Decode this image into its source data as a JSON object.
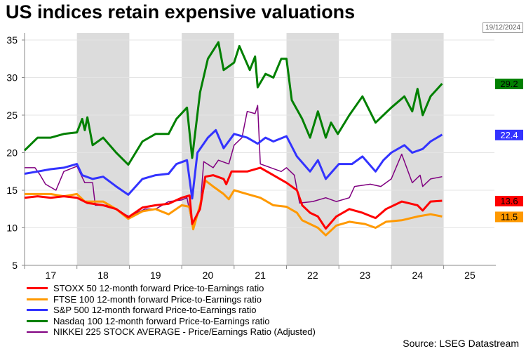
{
  "title": "US indices retain expensive valuations",
  "date_stamp": "19/12/2024",
  "source": "Source: LSEG Datastream",
  "chart_data": {
    "type": "line",
    "title": "US indices retain expensive valuations",
    "xlim": [
      2017,
      2026
    ],
    "ylim": [
      5,
      36
    ],
    "yticks": [
      5,
      10,
      15,
      20,
      25,
      30,
      35
    ],
    "xtick_labels": [
      "17",
      "18",
      "19",
      "20",
      "21",
      "22",
      "23",
      "24",
      "25"
    ],
    "shaded_years": [
      2018,
      2020,
      2022,
      2024
    ],
    "grid": true,
    "legend_placement": "bottom",
    "series": [
      {
        "name": "STOXX 50  12-month forward Price-to-Earnings ratio",
        "color": "#ff0000",
        "last_label": "13.6",
        "label_text_color": "#000000",
        "x": [
          2017,
          2017.25,
          2017.5,
          2017.75,
          2018,
          2018.2,
          2018.5,
          2018.75,
          2018.98,
          2019.25,
          2019.5,
          2019.75,
          2020,
          2020.15,
          2020.2,
          2020.35,
          2020.45,
          2020.6,
          2020.8,
          2020.85,
          2020.95,
          2021.25,
          2021.5,
          2021.75,
          2022,
          2022.2,
          2022.3,
          2022.45,
          2022.6,
          2022.75,
          2022.95,
          2023.2,
          2023.45,
          2023.7,
          2023.9,
          2024.2,
          2024.5,
          2024.6,
          2024.75,
          2024.97
        ],
        "y": [
          14,
          14.2,
          14,
          14.2,
          14,
          13.3,
          13,
          12.5,
          11.4,
          12.7,
          13,
          13.2,
          14,
          14.3,
          10.5,
          12.5,
          16.8,
          17,
          16.5,
          15.8,
          17.5,
          17.5,
          18,
          17,
          16,
          15,
          13,
          12,
          11.5,
          9.9,
          11.5,
          12.5,
          12,
          11.3,
          12.5,
          13.5,
          13,
          12.3,
          13.5,
          13.6
        ]
      },
      {
        "name": "FTSE 100 12-month forward Price-to-Earnings ratio",
        "color": "#ff9900",
        "last_label": "11.5",
        "label_text_color": "#000000",
        "x": [
          2017,
          2017.25,
          2017.5,
          2017.75,
          2018,
          2018.15,
          2018.5,
          2018.75,
          2018.98,
          2019.25,
          2019.5,
          2019.75,
          2020,
          2020.15,
          2020.22,
          2020.35,
          2020.45,
          2020.6,
          2020.8,
          2020.9,
          2021,
          2021.25,
          2021.5,
          2021.75,
          2022,
          2022.2,
          2022.3,
          2022.45,
          2022.6,
          2022.75,
          2022.95,
          2023.2,
          2023.5,
          2023.7,
          2023.9,
          2024.2,
          2024.5,
          2024.75,
          2024.97
        ],
        "y": [
          14.5,
          14.5,
          14.5,
          14.2,
          14.5,
          13.5,
          13.5,
          12.5,
          11.2,
          12.2,
          12.5,
          11.8,
          13,
          12.8,
          9.8,
          13,
          16.3,
          15.5,
          14.5,
          13.8,
          15,
          14.5,
          14,
          13,
          12.8,
          12,
          11,
          10.5,
          10,
          9,
          10.3,
          10.8,
          10.5,
          10,
          10.8,
          11,
          11.5,
          11.8,
          11.5
        ]
      },
      {
        "name": "S&P 500 12-month forward Price-to-Earnings ratio",
        "color": "#3333ff",
        "last_label": "22.4",
        "label_text_color": "#ffffff",
        "x": [
          2017,
          2017.25,
          2017.5,
          2017.75,
          2018,
          2018.1,
          2018.3,
          2018.5,
          2018.75,
          2018.98,
          2019.25,
          2019.5,
          2019.75,
          2019.9,
          2020.1,
          2020.2,
          2020.3,
          2020.5,
          2020.65,
          2020.8,
          2021,
          2021.25,
          2021.45,
          2021.6,
          2021.75,
          2022,
          2022.2,
          2022.45,
          2022.6,
          2022.75,
          2023,
          2023.25,
          2023.45,
          2023.7,
          2023.85,
          2024,
          2024.25,
          2024.4,
          2024.6,
          2024.75,
          2024.97
        ],
        "y": [
          17.2,
          17.5,
          17.8,
          18,
          18.5,
          17,
          16.5,
          16.8,
          15.5,
          14.4,
          16.5,
          17,
          17.2,
          18.5,
          19,
          13.9,
          20,
          22,
          23,
          20.6,
          22.5,
          22,
          21.2,
          22,
          21.5,
          22.2,
          19.5,
          17.5,
          19,
          16.5,
          18.5,
          18.5,
          19.5,
          17.5,
          19,
          20,
          21,
          20,
          20.5,
          21.5,
          22.4
        ]
      },
      {
        "name": "Nasdaq 100 12-month forward Price-to-Earnings ratio",
        "color": "#008000",
        "last_label": "29.2",
        "label_text_color": "#000000",
        "x": [
          2017,
          2017.25,
          2017.5,
          2017.75,
          2018,
          2018.1,
          2018.15,
          2018.2,
          2018.3,
          2018.5,
          2018.75,
          2018.98,
          2019.25,
          2019.5,
          2019.75,
          2019.9,
          2020.1,
          2020.2,
          2020.35,
          2020.5,
          2020.7,
          2020.8,
          2021,
          2021.1,
          2021.3,
          2021.4,
          2021.45,
          2021.6,
          2021.75,
          2021.9,
          2022,
          2022.1,
          2022.3,
          2022.45,
          2022.6,
          2022.75,
          2022.85,
          2022.98,
          2023.2,
          2023.45,
          2023.7,
          2023.85,
          2024,
          2024.25,
          2024.4,
          2024.5,
          2024.6,
          2024.75,
          2024.97
        ],
        "y": [
          20.3,
          22,
          22,
          22.5,
          22.7,
          24.5,
          23,
          24.7,
          21,
          22,
          20,
          18.4,
          21.5,
          22.5,
          22.5,
          24.5,
          26,
          19.3,
          28,
          32.5,
          34.7,
          31,
          32,
          34.2,
          31,
          32.8,
          28.7,
          30.5,
          30,
          32.5,
          32.5,
          27,
          24.5,
          22,
          25.5,
          22,
          24,
          22.5,
          25,
          27.5,
          24,
          25,
          26,
          27.5,
          25.5,
          28.5,
          25,
          27.5,
          29.2
        ]
      },
      {
        "name": "NIKKEI 225 STOCK AVERAGE - Price/Earnings Ratio (Adjusted)",
        "color": "#800080",
        "last_label": "",
        "label_text_color": "",
        "x": [
          2017,
          2017.2,
          2017.3,
          2017.4,
          2017.6,
          2017.75,
          2018,
          2018.15,
          2018.3,
          2018.35,
          2018.6,
          2018.85,
          2019,
          2019.3,
          2019.5,
          2019.75,
          2020,
          2020.1,
          2020.2,
          2020.35,
          2020.42,
          2020.6,
          2020.7,
          2020.9,
          2021,
          2021.15,
          2021.25,
          2021.4,
          2021.45,
          2021.5,
          2021.7,
          2021.9,
          2022,
          2022.15,
          2022.25,
          2022.5,
          2022.75,
          2022.95,
          2023.2,
          2023.3,
          2023.6,
          2023.8,
          2024,
          2024.2,
          2024.4,
          2024.55,
          2024.6,
          2024.75,
          2024.97
        ],
        "y": [
          18,
          18,
          17,
          15.8,
          15,
          17.5,
          18.2,
          16,
          16,
          13,
          13,
          12,
          11.5,
          12.5,
          12.5,
          13.5,
          13.7,
          14,
          10.5,
          12.5,
          18.8,
          18,
          19,
          18.5,
          21,
          22,
          25.5,
          25.2,
          26.3,
          18.5,
          18,
          17.5,
          18,
          17,
          13.3,
          13.5,
          14,
          13.5,
          14,
          15.5,
          15.8,
          15.5,
          16.5,
          19.8,
          16,
          17,
          15.5,
          16.5,
          16.8
        ]
      }
    ]
  }
}
